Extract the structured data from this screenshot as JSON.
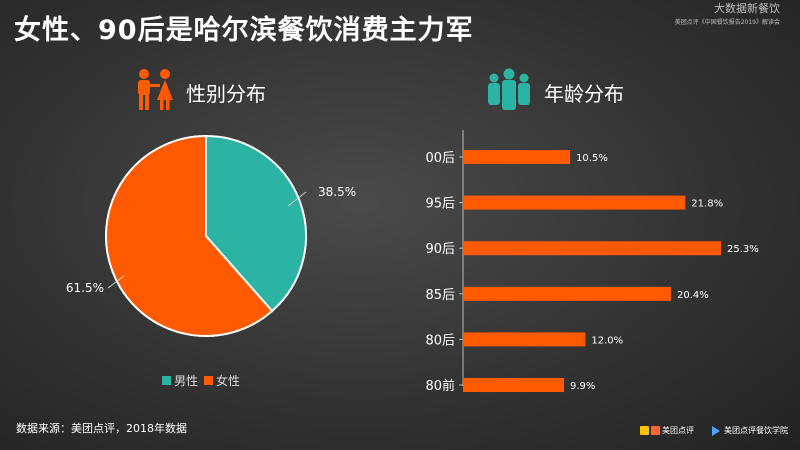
{
  "title": "女性、90后是哈尔滨餐饮消费主力军",
  "header_right": {
    "line1": "大数据新餐饮",
    "line2": "美团点评《中国餐饮报告2019》解读会"
  },
  "colors": {
    "teal": "#2bb3a3",
    "orange": "#ff5a00",
    "background": "#333333"
  },
  "gender_section": {
    "label": "性别分布",
    "icon": "couple-icon"
  },
  "age_section": {
    "label": "年龄分布",
    "icon": "group-icon"
  },
  "chart_data": [
    {
      "type": "pie",
      "title": "性别分布",
      "slices": [
        {
          "name": "男性",
          "value": 38.5,
          "label": "38.5%",
          "color": "#2bb3a3"
        },
        {
          "name": "女性",
          "value": 61.5,
          "label": "61.5%",
          "color": "#ff5a00"
        }
      ],
      "legend": [
        "男性",
        "女性"
      ],
      "legend_position": "bottom"
    },
    {
      "type": "bar",
      "orientation": "horizontal",
      "title": "年龄分布",
      "categories": [
        "00后",
        "95后",
        "90后",
        "85后",
        "80后",
        "80前"
      ],
      "values": [
        10.5,
        21.8,
        25.3,
        20.4,
        12.0,
        9.9
      ],
      "value_labels": [
        "10.5%",
        "21.8%",
        "25.3%",
        "20.4%",
        "12.0%",
        "9.9%"
      ],
      "color": "#ff5a00",
      "grid": false
    }
  ],
  "footer": {
    "source": "数据来源：美团点评，2018年数据",
    "logo1": "美团点评",
    "logo2": "美团点评餐饮学院"
  }
}
